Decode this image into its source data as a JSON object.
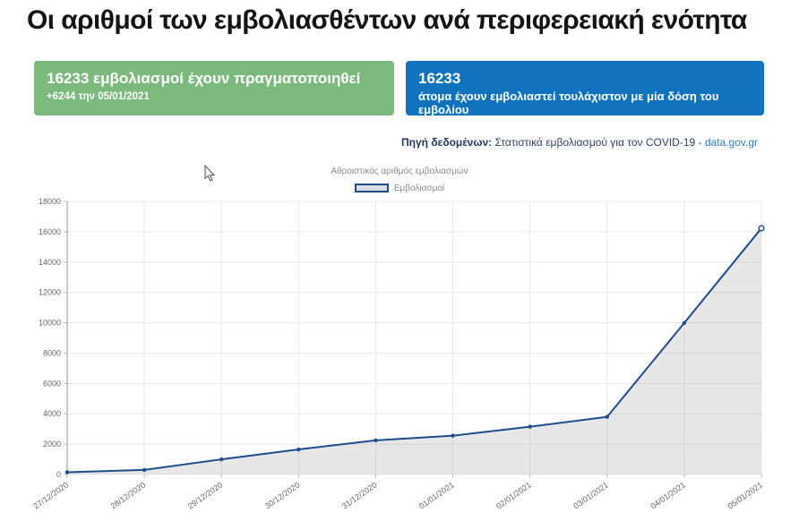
{
  "page_title": "Οι αριθμοί των εμβολιασθέντων ανά περιφερειακή ενότητα",
  "cards": {
    "green": {
      "headline": "16233 εμβολιασμοί έχουν πραγματοποιηθεί",
      "subline": "+6244 την 05/01/2021",
      "bg": "#7cb97c"
    },
    "blue": {
      "headline": "16233",
      "subline": "άτομα έχουν εμβολιαστεί τουλάχιστον με μία δόση του εμβολίου",
      "bg": "#1173bd"
    }
  },
  "source": {
    "label": "Πηγή δεδομένων:",
    "text": " Στατιστικά εμβολιασμού για τον COVID-19 - ",
    "link": "data.gov.gr"
  },
  "chart_data": {
    "type": "area",
    "title": "Αθροιστικός αριθμός εμβολιασμών",
    "legend": [
      "Εμβολιασμοί"
    ],
    "categories": [
      "27/12/2020",
      "28/12/2020",
      "29/12/2020",
      "30/12/2020",
      "31/12/2020",
      "01/01/2021",
      "02/01/2021",
      "03/01/2021",
      "04/01/2021",
      "05/01/2021"
    ],
    "values": [
      150,
      300,
      1000,
      1650,
      2250,
      2560,
      3150,
      3800,
      9989,
      16233
    ],
    "xlabel": "",
    "ylabel": "",
    "ylim": [
      0,
      18000
    ],
    "ytick_step": 2000,
    "grid": "on",
    "legend_position": "top-center",
    "colors": {
      "line": "#1d4e89",
      "fill": "rgba(120,120,120,0.18)",
      "grid": "#e9e9e9",
      "axis": "#9a9a9a",
      "tick": "#bbbbbb",
      "text": "#666666"
    }
  }
}
